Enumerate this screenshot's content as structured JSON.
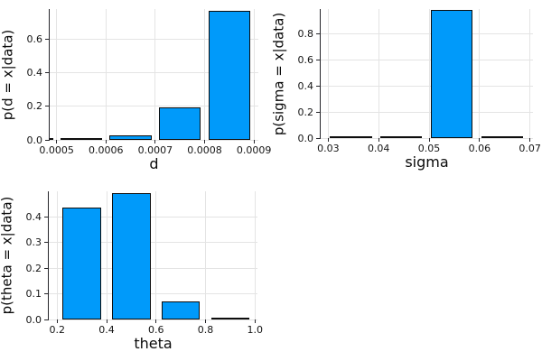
{
  "figure": {
    "background": "#ffffff",
    "bar_fill": "#009afa",
    "bar_stroke": "#0d0d0d",
    "grid_color": "#e4e4e4",
    "axis_color": "#26262b",
    "text_color": "#141414"
  },
  "chart_data": [
    {
      "type": "bar",
      "name": "posterior-d",
      "xlabel": "d",
      "ylabel": "p(d = x|data)",
      "xlim": [
        0.000486,
        0.000909
      ],
      "ylim": [
        0,
        0.78
      ],
      "grid": true,
      "legend": "none",
      "bar_halfwidth": 4.25e-05,
      "xticks": [
        {
          "v": 0.0005,
          "label": "0.0005"
        },
        {
          "v": 0.0006,
          "label": "0.0006"
        },
        {
          "v": 0.0007,
          "label": "0.0007"
        },
        {
          "v": 0.0008,
          "label": "0.0008"
        },
        {
          "v": 0.0009,
          "label": "0.0009"
        }
      ],
      "yticks": [
        {
          "v": 0.0,
          "label": "0.0"
        },
        {
          "v": 0.2,
          "label": "0.2"
        },
        {
          "v": 0.4,
          "label": "0.4"
        },
        {
          "v": 0.6,
          "label": "0.6"
        }
      ],
      "bars": [
        {
          "x": 0.00045,
          "p": 0.002
        },
        {
          "x": 0.00055,
          "p": 0.002
        },
        {
          "x": 0.00065,
          "p": 0.028
        },
        {
          "x": 0.00075,
          "p": 0.193
        },
        {
          "x": 0.00085,
          "p": 0.772
        }
      ]
    },
    {
      "type": "bar",
      "name": "posterior-sigma",
      "xlabel": "sigma",
      "ylabel": "p(sigma = x|data)",
      "xlim": [
        0.0285,
        0.0706
      ],
      "ylim": [
        0,
        0.99
      ],
      "grid": true,
      "legend": "none",
      "bar_halfwidth": 0.00415,
      "xticks": [
        {
          "v": 0.03,
          "label": "0.03"
        },
        {
          "v": 0.04,
          "label": "0.04"
        },
        {
          "v": 0.05,
          "label": "0.05"
        },
        {
          "v": 0.06,
          "label": "0.06"
        },
        {
          "v": 0.07,
          "label": "0.07"
        }
      ],
      "yticks": [
        {
          "v": 0.0,
          "label": "0.0"
        },
        {
          "v": 0.2,
          "label": "0.2"
        },
        {
          "v": 0.4,
          "label": "0.4"
        },
        {
          "v": 0.6,
          "label": "0.6"
        },
        {
          "v": 0.8,
          "label": "0.8"
        }
      ],
      "bars": [
        {
          "x": 0.0345,
          "p": 0.001
        },
        {
          "x": 0.0445,
          "p": 0.008
        },
        {
          "x": 0.0545,
          "p": 0.98
        },
        {
          "x": 0.0645,
          "p": 0.004
        }
      ]
    },
    {
      "type": "bar",
      "name": "posterior-theta",
      "xlabel": "theta",
      "ylabel": "p(theta = x|data)",
      "xlim": [
        0.166,
        1.01
      ],
      "ylim": [
        0,
        0.5
      ],
      "grid": true,
      "legend": "none",
      "bar_halfwidth": 0.078,
      "xticks": [
        {
          "v": 0.2,
          "label": "0.2"
        },
        {
          "v": 0.4,
          "label": "0.4"
        },
        {
          "v": 0.6,
          "label": "0.6"
        },
        {
          "v": 0.8,
          "label": "0.8"
        },
        {
          "v": 1.0,
          "label": "1.0"
        }
      ],
      "yticks": [
        {
          "v": 0.0,
          "label": "0.0"
        },
        {
          "v": 0.1,
          "label": "0.1"
        },
        {
          "v": 0.2,
          "label": "0.2"
        },
        {
          "v": 0.3,
          "label": "0.3"
        },
        {
          "v": 0.4,
          "label": "0.4"
        }
      ],
      "bars": [
        {
          "x": 0.3,
          "p": 0.437
        },
        {
          "x": 0.5,
          "p": 0.493
        },
        {
          "x": 0.7,
          "p": 0.071
        },
        {
          "x": 0.9,
          "p": 0.003
        }
      ]
    }
  ]
}
